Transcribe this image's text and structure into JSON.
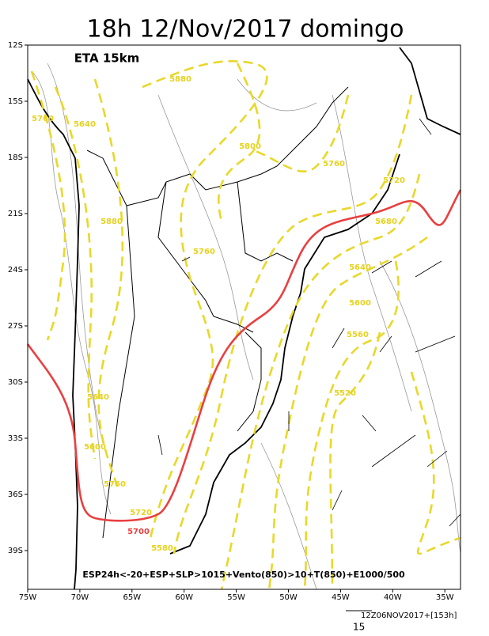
{
  "title": "18h 12/Nov/2017 domingo",
  "model": "ETA 15km",
  "footer": "ESP24h<-20+ESP+SLP>1015+Vento(850)>10+T(850)+E1000/500",
  "lat_labels": [
    "12S",
    "15S",
    "18S",
    "21S",
    "24S",
    "27S",
    "30S",
    "33S",
    "36S",
    "39S"
  ],
  "lon_labels": [
    "75W",
    "70W",
    "65W",
    "60W",
    "55W",
    "50W",
    "45W",
    "40W",
    "35W"
  ],
  "contour_labels": [
    "5880",
    "5760",
    "5640",
    "5800",
    "5760",
    "5720",
    "5880",
    "5680",
    "5760",
    "5640",
    "5600",
    "5560",
    "5640",
    "5520",
    "5600",
    "5760",
    "5720",
    "5700",
    "5580"
  ],
  "vector_reference": "12Z06NOV2017+[153h]",
  "vector_scale": "15"
}
